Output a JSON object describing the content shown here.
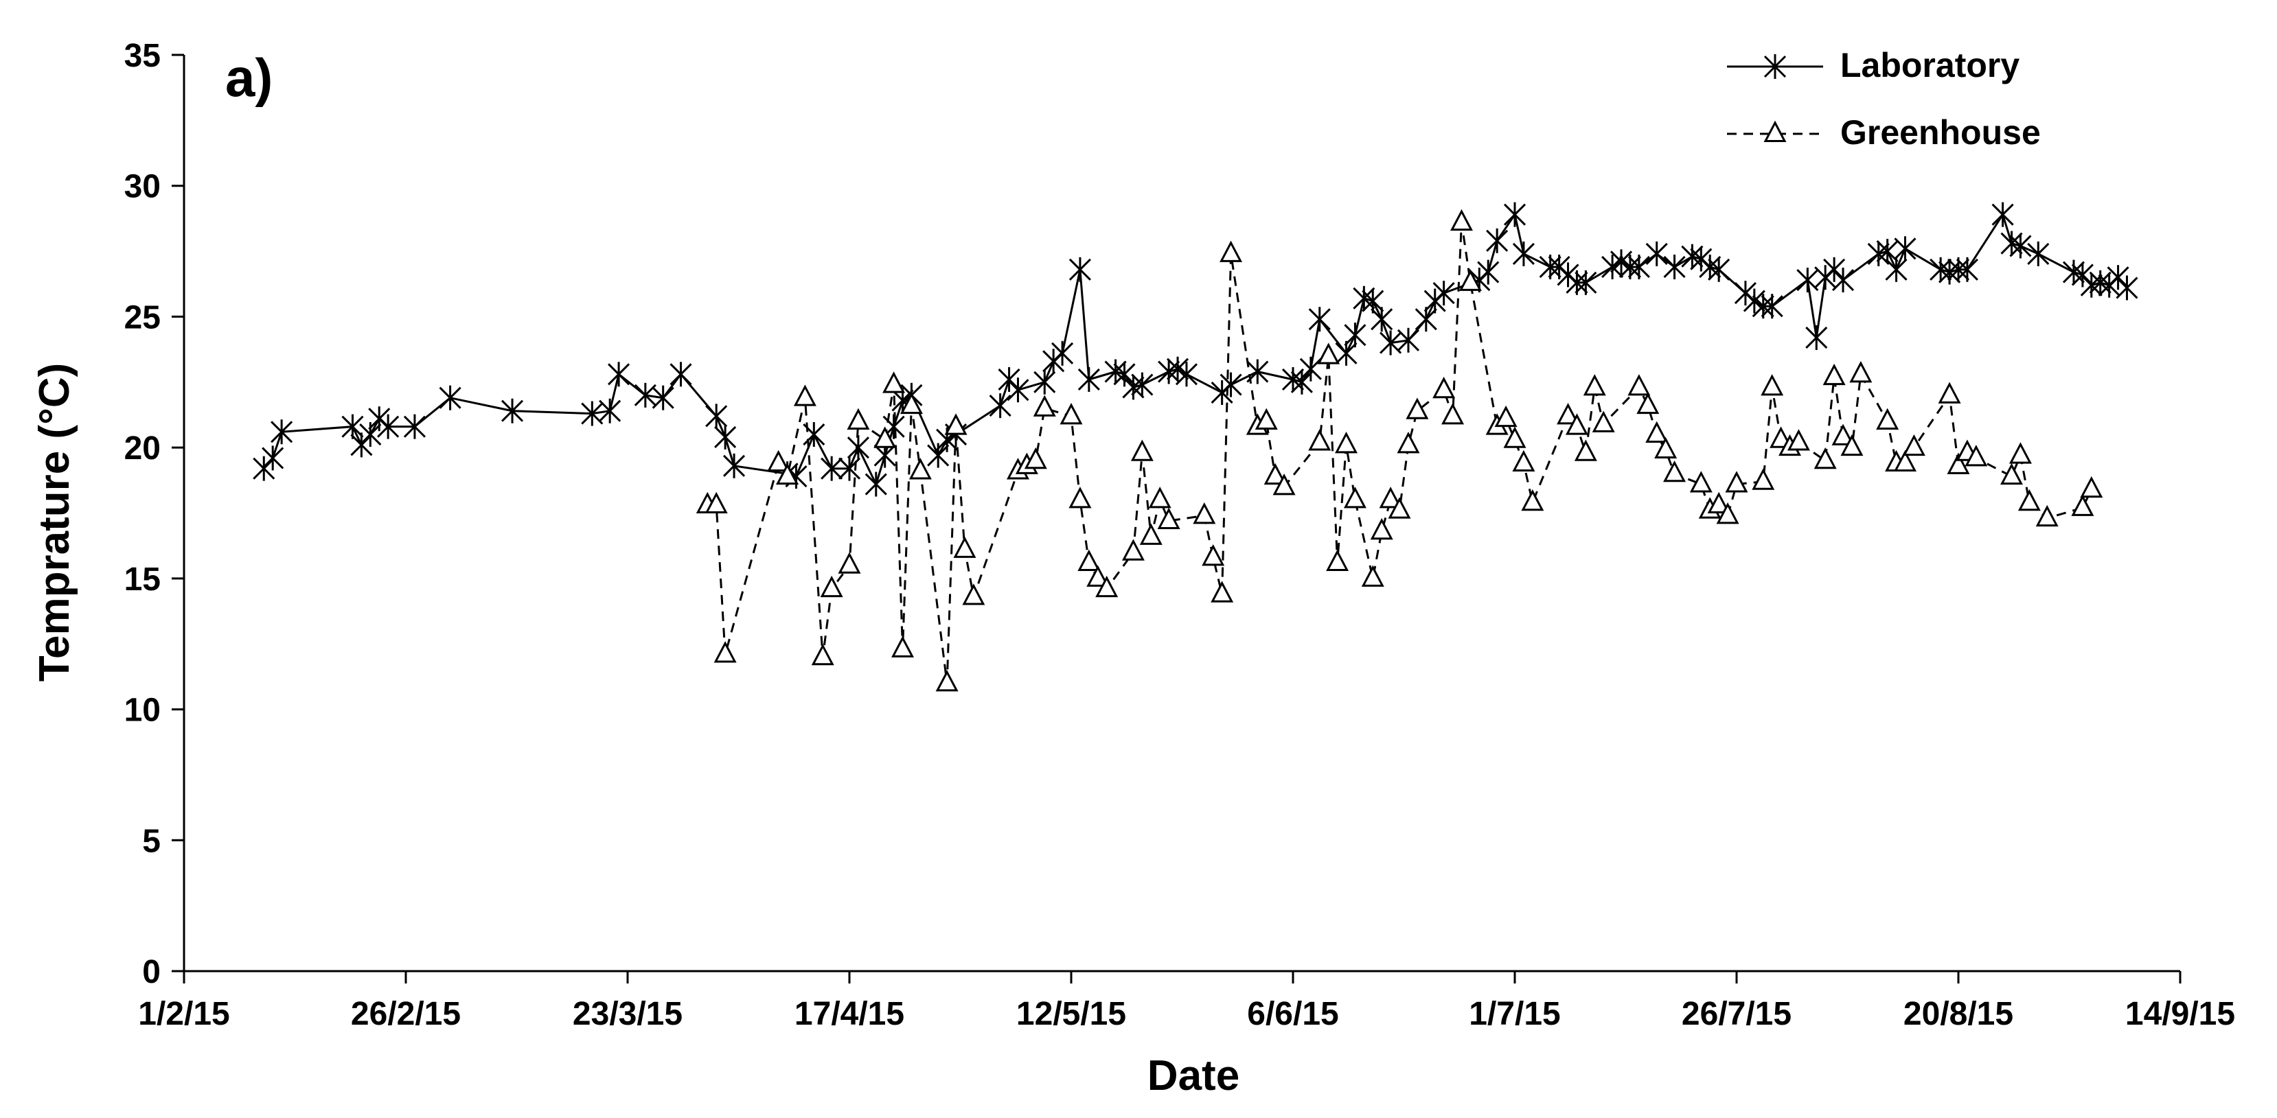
{
  "chart_data": {
    "type": "line",
    "panel_label": "a)",
    "xlabel": "Date",
    "ylabel": "Temprature (°C)",
    "x_ticks": [
      "1/2/15",
      "26/2/15",
      "23/3/15",
      "17/4/15",
      "12/5/15",
      "6/6/15",
      "1/7/15",
      "26/7/15",
      "20/8/15",
      "14/9/15"
    ],
    "xlim": [
      "2015-02-01",
      "2015-09-14"
    ],
    "y_ticks": [
      0,
      5,
      10,
      15,
      20,
      25,
      30,
      35
    ],
    "ylim": [
      0,
      35
    ],
    "grid": false,
    "legend_position": "top-right",
    "series": [
      {
        "name": "Laboratory",
        "marker": "asterisk",
        "line_style": "solid",
        "points": [
          [
            "2015-02-10",
            19.2
          ],
          [
            "2015-02-11",
            19.6
          ],
          [
            "2015-02-12",
            20.6
          ],
          [
            "2015-02-20",
            20.8
          ],
          [
            "2015-02-21",
            20.1
          ],
          [
            "2015-02-22",
            20.5
          ],
          [
            "2015-02-23",
            21.1
          ],
          [
            "2015-02-24",
            20.8
          ],
          [
            "2015-02-27",
            20.8
          ],
          [
            "2015-03-03",
            21.9
          ],
          [
            "2015-03-10",
            21.4
          ],
          [
            "2015-03-19",
            21.3
          ],
          [
            "2015-03-21",
            21.4
          ],
          [
            "2015-03-22",
            22.8
          ],
          [
            "2015-03-25",
            22.0
          ],
          [
            "2015-03-27",
            21.9
          ],
          [
            "2015-03-29",
            22.8
          ],
          [
            "2015-04-02",
            21.2
          ],
          [
            "2015-04-03",
            20.4
          ],
          [
            "2015-04-04",
            19.3
          ],
          [
            "2015-04-10",
            19.0
          ],
          [
            "2015-04-11",
            18.9
          ],
          [
            "2015-04-13",
            20.5
          ],
          [
            "2015-04-15",
            19.2
          ],
          [
            "2015-04-17",
            19.2
          ],
          [
            "2015-04-18",
            20.0
          ],
          [
            "2015-04-20",
            18.6
          ],
          [
            "2015-04-21",
            19.7
          ],
          [
            "2015-04-22",
            20.8
          ],
          [
            "2015-04-23",
            21.8
          ],
          [
            "2015-04-24",
            22.0
          ],
          [
            "2015-04-27",
            19.7
          ],
          [
            "2015-04-28",
            20.3
          ],
          [
            "2015-04-29",
            20.5
          ],
          [
            "2015-05-04",
            21.6
          ],
          [
            "2015-05-05",
            22.6
          ],
          [
            "2015-05-06",
            22.2
          ],
          [
            "2015-05-09",
            22.5
          ],
          [
            "2015-05-10",
            23.3
          ],
          [
            "2015-05-11",
            23.6
          ],
          [
            "2015-05-13",
            26.8
          ],
          [
            "2015-05-14",
            22.6
          ],
          [
            "2015-05-17",
            22.9
          ],
          [
            "2015-05-18",
            22.8
          ],
          [
            "2015-05-19",
            22.3
          ],
          [
            "2015-05-20",
            22.4
          ],
          [
            "2015-05-23",
            22.9
          ],
          [
            "2015-05-24",
            23.0
          ],
          [
            "2015-05-25",
            22.8
          ],
          [
            "2015-05-29",
            22.1
          ],
          [
            "2015-05-30",
            22.4
          ],
          [
            "2015-06-02",
            22.9
          ],
          [
            "2015-06-06",
            22.6
          ],
          [
            "2015-06-07",
            22.5
          ],
          [
            "2015-06-08",
            23.0
          ],
          [
            "2015-06-09",
            24.9
          ],
          [
            "2015-06-12",
            23.6
          ],
          [
            "2015-06-13",
            24.3
          ],
          [
            "2015-06-14",
            25.7
          ],
          [
            "2015-06-15",
            25.6
          ],
          [
            "2015-06-16",
            24.9
          ],
          [
            "2015-06-17",
            24.0
          ],
          [
            "2015-06-19",
            24.1
          ],
          [
            "2015-06-21",
            24.9
          ],
          [
            "2015-06-22",
            25.6
          ],
          [
            "2015-06-23",
            25.9
          ],
          [
            "2015-06-27",
            26.4
          ],
          [
            "2015-06-28",
            26.7
          ],
          [
            "2015-06-29",
            27.9
          ],
          [
            "2015-07-01",
            28.9
          ],
          [
            "2015-07-02",
            27.4
          ],
          [
            "2015-07-05",
            26.9
          ],
          [
            "2015-07-06",
            26.9
          ],
          [
            "2015-07-07",
            26.6
          ],
          [
            "2015-07-08",
            26.3
          ],
          [
            "2015-07-09",
            26.3
          ],
          [
            "2015-07-12",
            26.9
          ],
          [
            "2015-07-13",
            27.1
          ],
          [
            "2015-07-14",
            26.9
          ],
          [
            "2015-07-15",
            26.9
          ],
          [
            "2015-07-17",
            27.4
          ],
          [
            "2015-07-19",
            26.9
          ],
          [
            "2015-07-21",
            27.3
          ],
          [
            "2015-07-22",
            27.2
          ],
          [
            "2015-07-23",
            26.9
          ],
          [
            "2015-07-24",
            26.8
          ],
          [
            "2015-07-27",
            25.9
          ],
          [
            "2015-07-28",
            25.6
          ],
          [
            "2015-07-29",
            25.4
          ],
          [
            "2015-07-30",
            25.4
          ],
          [
            "2015-08-03",
            26.4
          ],
          [
            "2015-08-04",
            24.2
          ],
          [
            "2015-08-05",
            26.5
          ],
          [
            "2015-08-06",
            26.8
          ],
          [
            "2015-08-07",
            26.4
          ],
          [
            "2015-08-11",
            27.4
          ],
          [
            "2015-08-12",
            27.5
          ],
          [
            "2015-08-13",
            26.8
          ],
          [
            "2015-08-14",
            27.6
          ],
          [
            "2015-08-18",
            26.8
          ],
          [
            "2015-08-19",
            26.7
          ],
          [
            "2015-08-20",
            26.8
          ],
          [
            "2015-08-21",
            26.8
          ],
          [
            "2015-08-25",
            28.9
          ],
          [
            "2015-08-26",
            27.8
          ],
          [
            "2015-08-27",
            27.7
          ],
          [
            "2015-08-29",
            27.4
          ],
          [
            "2015-09-02",
            26.7
          ],
          [
            "2015-09-03",
            26.6
          ],
          [
            "2015-09-04",
            26.2
          ],
          [
            "2015-09-05",
            26.3
          ],
          [
            "2015-09-06",
            26.2
          ],
          [
            "2015-09-07",
            26.5
          ],
          [
            "2015-09-08",
            26.1
          ]
        ]
      },
      {
        "name": "Greenhouse",
        "marker": "triangle-open",
        "line_style": "dashed",
        "points": [
          [
            "2015-04-01",
            17.8
          ],
          [
            "2015-04-02",
            17.8
          ],
          [
            "2015-04-03",
            12.1
          ],
          [
            "2015-04-09",
            19.4
          ],
          [
            "2015-04-10",
            18.9
          ],
          [
            "2015-04-12",
            21.9
          ],
          [
            "2015-04-14",
            12.0
          ],
          [
            "2015-04-15",
            14.6
          ],
          [
            "2015-04-17",
            15.5
          ],
          [
            "2015-04-18",
            21.0
          ],
          [
            "2015-04-21",
            20.3
          ],
          [
            "2015-04-22",
            22.4
          ],
          [
            "2015-04-23",
            12.3
          ],
          [
            "2015-04-24",
            21.6
          ],
          [
            "2015-04-25",
            19.1
          ],
          [
            "2015-04-28",
            11.0
          ],
          [
            "2015-04-29",
            20.8
          ],
          [
            "2015-04-30",
            16.1
          ],
          [
            "2015-05-01",
            14.3
          ],
          [
            "2015-05-06",
            19.1
          ],
          [
            "2015-05-07",
            19.3
          ],
          [
            "2015-05-08",
            19.5
          ],
          [
            "2015-05-09",
            21.5
          ],
          [
            "2015-05-12",
            21.2
          ],
          [
            "2015-05-13",
            18.0
          ],
          [
            "2015-05-14",
            15.6
          ],
          [
            "2015-05-15",
            15.0
          ],
          [
            "2015-05-16",
            14.6
          ],
          [
            "2015-05-19",
            16.0
          ],
          [
            "2015-05-20",
            19.8
          ],
          [
            "2015-05-21",
            16.6
          ],
          [
            "2015-05-22",
            18.0
          ],
          [
            "2015-05-23",
            17.2
          ],
          [
            "2015-05-27",
            17.4
          ],
          [
            "2015-05-28",
            15.8
          ],
          [
            "2015-05-29",
            14.4
          ],
          [
            "2015-05-30",
            27.4
          ],
          [
            "2015-06-02",
            20.8
          ],
          [
            "2015-06-03",
            21.0
          ],
          [
            "2015-06-04",
            18.9
          ],
          [
            "2015-06-05",
            18.5
          ],
          [
            "2015-06-09",
            20.2
          ],
          [
            "2015-06-10",
            23.5
          ],
          [
            "2015-06-11",
            15.6
          ],
          [
            "2015-06-12",
            20.1
          ],
          [
            "2015-06-13",
            18.0
          ],
          [
            "2015-06-15",
            15.0
          ],
          [
            "2015-06-16",
            16.8
          ],
          [
            "2015-06-17",
            18.0
          ],
          [
            "2015-06-18",
            17.6
          ],
          [
            "2015-06-19",
            20.1
          ],
          [
            "2015-06-20",
            21.4
          ],
          [
            "2015-06-23",
            22.2
          ],
          [
            "2015-06-24",
            21.2
          ],
          [
            "2015-06-25",
            28.6
          ],
          [
            "2015-06-26",
            26.3
          ],
          [
            "2015-06-29",
            20.8
          ],
          [
            "2015-06-30",
            21.1
          ],
          [
            "2015-07-01",
            20.3
          ],
          [
            "2015-07-02",
            19.4
          ],
          [
            "2015-07-03",
            17.9
          ],
          [
            "2015-07-07",
            21.2
          ],
          [
            "2015-07-08",
            20.8
          ],
          [
            "2015-07-09",
            19.8
          ],
          [
            "2015-07-10",
            22.3
          ],
          [
            "2015-07-11",
            20.9
          ],
          [
            "2015-07-15",
            22.3
          ],
          [
            "2015-07-16",
            21.6
          ],
          [
            "2015-07-17",
            20.5
          ],
          [
            "2015-07-18",
            19.9
          ],
          [
            "2015-07-19",
            19.0
          ],
          [
            "2015-07-22",
            18.6
          ],
          [
            "2015-07-23",
            17.6
          ],
          [
            "2015-07-24",
            17.8
          ],
          [
            "2015-07-25",
            17.4
          ],
          [
            "2015-07-26",
            18.6
          ],
          [
            "2015-07-29",
            18.7
          ],
          [
            "2015-07-30",
            22.3
          ],
          [
            "2015-07-31",
            20.3
          ],
          [
            "2015-08-01",
            20.0
          ],
          [
            "2015-08-02",
            20.2
          ],
          [
            "2015-08-05",
            19.5
          ],
          [
            "2015-08-06",
            22.7
          ],
          [
            "2015-08-07",
            20.4
          ],
          [
            "2015-08-08",
            20.0
          ],
          [
            "2015-08-09",
            22.8
          ],
          [
            "2015-08-12",
            21.0
          ],
          [
            "2015-08-13",
            19.4
          ],
          [
            "2015-08-14",
            19.4
          ],
          [
            "2015-08-15",
            20.0
          ],
          [
            "2015-08-19",
            22.0
          ],
          [
            "2015-08-20",
            19.3
          ],
          [
            "2015-08-21",
            19.8
          ],
          [
            "2015-08-22",
            19.6
          ],
          [
            "2015-08-26",
            18.9
          ],
          [
            "2015-08-27",
            19.7
          ],
          [
            "2015-08-28",
            17.9
          ],
          [
            "2015-08-30",
            17.3
          ],
          [
            "2015-09-03",
            17.7
          ],
          [
            "2015-09-04",
            18.4
          ]
        ]
      }
    ]
  }
}
